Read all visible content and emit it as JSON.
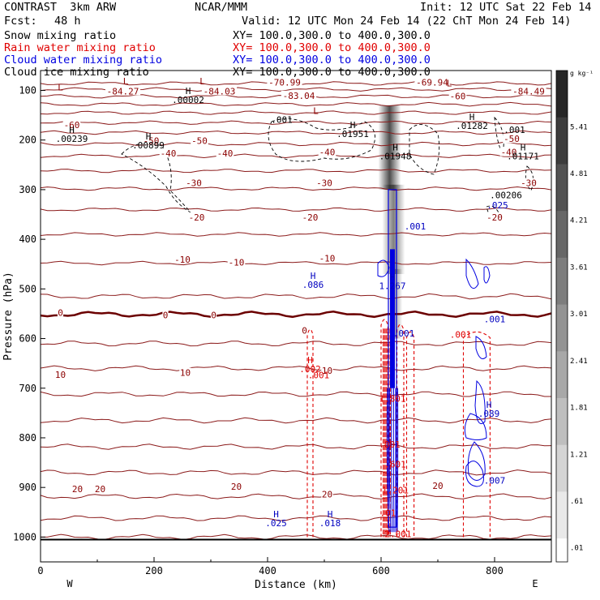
{
  "header": {
    "model": "CONTRAST  3km ARW",
    "center": "NCAR/MMM",
    "init": "Init: 12 UTC Sat 22 Feb 14",
    "fcst_label": "Fcst:",
    "fcst_value": "48 h",
    "valid": "Valid: 12 UTC Mon 24 Feb 14 (22 ChT Mon 24 Feb 14)"
  },
  "fields": [
    {
      "name": "Snow mixing ratio",
      "xy": "XY= 100.0,300.0 to 400.0,300.0",
      "color": "#000000"
    },
    {
      "name": "Rain water mixing ratio",
      "xy": "XY= 100.0,300.0 to 400.0,300.0",
      "color": "#e00000"
    },
    {
      "name": "Cloud water mixing ratio",
      "xy": "XY= 100.0,300.0 to 400.0,300.0",
      "color": "#0000e0"
    },
    {
      "name": "Cloud ice mixing ratio",
      "xy": "XY= 100.0,300.0 to 400.0,300.0",
      "color": "#000000"
    }
  ],
  "chart_data": {
    "type": "cross-section contour",
    "xlabel": "Distance (km)",
    "ylabel": "Pressure (hPa)",
    "xlim": [
      0,
      900
    ],
    "ylim": [
      1050,
      60
    ],
    "x_ticks": [
      "0",
      "200",
      "400",
      "600",
      "800"
    ],
    "y_ticks": [
      "100",
      "200",
      "300",
      "400",
      "500",
      "600",
      "700",
      "800",
      "900",
      "1000"
    ],
    "x_end_labels": [
      "W",
      "E"
    ],
    "colorbar": {
      "unit": "g kg⁻¹",
      "levels": [
        "5.41",
        "4.81",
        "4.21",
        "3.61",
        "3.01",
        "2.41",
        "1.81",
        "1.21",
        ".61",
        ".01"
      ]
    },
    "temperature_contour_labels": [
      {
        "text": "-70.99",
        "x": 430,
        "p": 85
      },
      {
        "text": "-69.94",
        "x": 690,
        "p": 85
      },
      {
        "text": "-84.27",
        "x": 145,
        "p": 103
      },
      {
        "text": "-84.03",
        "x": 315,
        "p": 103
      },
      {
        "text": "-84.49",
        "x": 860,
        "p": 103
      },
      {
        "text": "-83.04",
        "x": 455,
        "p": 112
      },
      {
        "text": "-60",
        "x": 735,
        "p": 113
      },
      {
        "text": "-60",
        "x": 55,
        "p": 171
      },
      {
        "text": "-50",
        "x": 195,
        "p": 203
      },
      {
        "text": "-50",
        "x": 280,
        "p": 203
      },
      {
        "text": "-50",
        "x": 830,
        "p": 199
      },
      {
        "text": "-40",
        "x": 225,
        "p": 228
      },
      {
        "text": "-40",
        "x": 325,
        "p": 228
      },
      {
        "text": "-40",
        "x": 505,
        "p": 226
      },
      {
        "text": "-40",
        "x": 825,
        "p": 226
      },
      {
        "text": "-30",
        "x": 270,
        "p": 288
      },
      {
        "text": "-30",
        "x": 500,
        "p": 288
      },
      {
        "text": "-30",
        "x": 860,
        "p": 288
      },
      {
        "text": "-20",
        "x": 275,
        "p": 357
      },
      {
        "text": "-20",
        "x": 475,
        "p": 357
      },
      {
        "text": "-20",
        "x": 800,
        "p": 357
      },
      {
        "text": "-10",
        "x": 250,
        "p": 442
      },
      {
        "text": "-10",
        "x": 345,
        "p": 448
      },
      {
        "text": "-10",
        "x": 505,
        "p": 440
      },
      {
        "text": "0",
        "x": 35,
        "p": 549
      },
      {
        "text": "0",
        "x": 220,
        "p": 554
      },
      {
        "text": "0",
        "x": 305,
        "p": 554
      },
      {
        "text": "0",
        "x": 465,
        "p": 585
      },
      {
        "text": "10",
        "x": 35,
        "p": 674
      },
      {
        "text": "10",
        "x": 255,
        "p": 670
      },
      {
        "text": "10",
        "x": 505,
        "p": 666
      },
      {
        "text": "20",
        "x": 65,
        "p": 905
      },
      {
        "text": "20",
        "x": 105,
        "p": 905
      },
      {
        "text": "20",
        "x": 345,
        "p": 900
      },
      {
        "text": "20",
        "x": 505,
        "p": 915
      },
      {
        "text": "20",
        "x": 700,
        "p": 898
      }
    ],
    "max_min_labels": [
      {
        "mark": "L",
        "value": "",
        "x": 150,
        "p": 88,
        "color": "#8b0000"
      },
      {
        "mark": "L",
        "value": "",
        "x": 285,
        "p": 88,
        "color": "#8b0000"
      },
      {
        "mark": "L",
        "value": "",
        "x": 35,
        "p": 100,
        "color": "#8b0000"
      },
      {
        "mark": "L",
        "value": "",
        "x": 720,
        "p": 92,
        "color": "#8b0000"
      },
      {
        "mark": "L",
        "value": "",
        "x": 485,
        "p": 147,
        "color": "#8b0000"
      },
      {
        "mark": "H",
        "value": ".00002",
        "x": 260,
        "p": 107,
        "color": "#000000"
      },
      {
        "mark": "",
        "value": ".001",
        "x": 425,
        "p": 165,
        "color": "#000000"
      },
      {
        "mark": "H",
        "value": ".01951",
        "x": 550,
        "p": 176,
        "color": "#000000"
      },
      {
        "mark": "H",
        "value": ".01282",
        "x": 760,
        "p": 160,
        "color": "#000000"
      },
      {
        "mark": "",
        "value": ".001",
        "x": 835,
        "p": 186,
        "color": "#000000"
      },
      {
        "mark": "H",
        "value": ".00239",
        "x": 55,
        "p": 186,
        "color": "#000000"
      },
      {
        "mark": "H",
        "value": ".00899",
        "x": 190,
        "p": 199,
        "color": "#000000"
      },
      {
        "mark": "H",
        "value": ".01948",
        "x": 625,
        "p": 221,
        "color": "#000000"
      },
      {
        "mark": "H",
        "value": ".01171",
        "x": 850,
        "p": 221,
        "color": "#000000"
      },
      {
        "mark": "",
        "value": ".00206",
        "x": 820,
        "p": 317,
        "color": "#000000"
      },
      {
        "mark": "",
        "value": ".025",
        "x": 805,
        "p": 338,
        "color": "#0000c0"
      },
      {
        "mark": "",
        "value": ".001",
        "x": 660,
        "p": 380,
        "color": "#0000c0"
      },
      {
        "mark": "H",
        "value": ".086",
        "x": 480,
        "p": 480,
        "color": "#0000c0"
      },
      {
        "mark": "H",
        "value": "1.267",
        "x": 620,
        "p": 482,
        "color": "#0000c0"
      },
      {
        "mark": "",
        "value": ".001",
        "x": 800,
        "p": 567,
        "color": "#0000c0"
      },
      {
        "mark": "",
        "value": ".001",
        "x": 740,
        "p": 598,
        "color": "#e00000"
      },
      {
        "mark": "",
        "value": ".001",
        "x": 640,
        "p": 596,
        "color": "#0000c0"
      },
      {
        "mark": "H",
        "value": ".002",
        "x": 475,
        "p": 650,
        "color": "#e00000"
      },
      {
        "mark": "",
        "value": ".001",
        "x": 490,
        "p": 680,
        "color": "#e00000"
      },
      {
        "mark": "",
        "value": "1.801",
        "x": 620,
        "p": 727,
        "color": "#e00000"
      },
      {
        "mark": "H",
        "value": ".089",
        "x": 790,
        "p": 740,
        "color": "#0000c0"
      },
      {
        "mark": "",
        "value": ".001",
        "x": 615,
        "p": 820,
        "color": "#e00000"
      },
      {
        "mark": "",
        "value": ".601",
        "x": 625,
        "p": 860,
        "color": "#e00000"
      },
      {
        "mark": "",
        "value": "1.201",
        "x": 625,
        "p": 912,
        "color": "#e00000"
      },
      {
        "mark": "",
        "value": ".007",
        "x": 800,
        "p": 892,
        "color": "#0000c0"
      },
      {
        "mark": "H",
        "value": ".025",
        "x": 415,
        "p": 960,
        "color": "#0000c0"
      },
      {
        "mark": "H",
        "value": ".018",
        "x": 510,
        "p": 960,
        "color": "#0000c0"
      },
      {
        "mark": "",
        "value": ".01",
        "x": 612,
        "p": 958,
        "color": "#e00000"
      },
      {
        "mark": "",
        "value": "2.001",
        "x": 630,
        "p": 1000,
        "color": "#e00000"
      }
    ],
    "snow_shading": [
      {
        "x": 615,
        "p_top": 130,
        "p_bottom": 300,
        "width": 40,
        "max": 4.2
      },
      {
        "x": 622,
        "p_top": 290,
        "p_bottom": 470,
        "width": 40,
        "max": 3.0
      },
      {
        "x": 625,
        "p_top": 460,
        "p_bottom": 600,
        "width": 25,
        "max": 2.0
      }
    ],
    "rain_columns": [
      {
        "x0": 470,
        "x1": 480,
        "p_top": 580,
        "p_bottom": 1000
      },
      {
        "x0": 600,
        "x1": 612,
        "p_top": 560,
        "p_bottom": 1000
      },
      {
        "x0": 628,
        "x1": 640,
        "p_top": 570,
        "p_bottom": 1000
      },
      {
        "x0": 645,
        "x1": 658,
        "p_top": 585,
        "p_bottom": 1000
      },
      {
        "x0": 745,
        "x1": 792,
        "p_top": 585,
        "p_bottom": 1000
      }
    ]
  }
}
